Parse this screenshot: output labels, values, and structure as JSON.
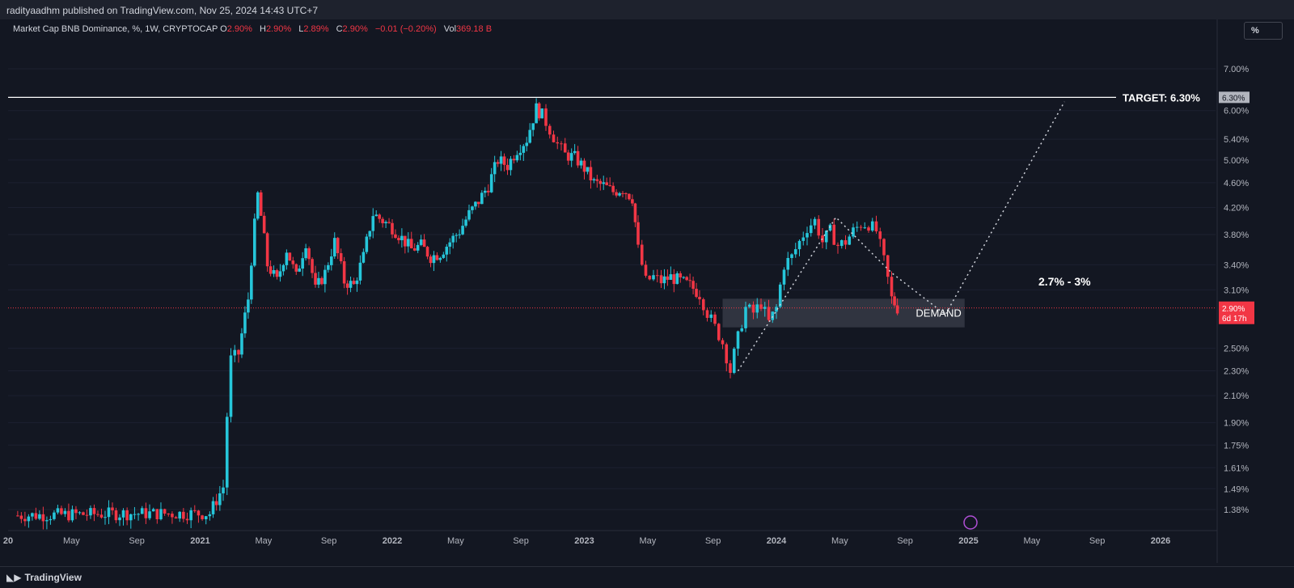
{
  "header": {
    "published": "radityaadhm published on TradingView.com, Nov 25, 2024 14:43 UTC+7"
  },
  "legend": {
    "symbol": "Market Cap BNB Dominance, %, 1W, CRYPTOCAP",
    "o_label": "O",
    "o_value": "2.90%",
    "h_label": "H",
    "h_value": "2.90%",
    "l_label": "L",
    "l_value": "2.89%",
    "c_label": "C",
    "c_value": "2.90%",
    "change": "−0.01 (−0.20%)",
    "vol_label": "Vol",
    "vol_value": "369.18 B"
  },
  "toolbar": {
    "scale_button": "%"
  },
  "footer": {
    "brand": "TradingView"
  },
  "colors": {
    "background": "#131722",
    "up": "#26c6da",
    "down": "#f23645",
    "text": "#d1d4dc",
    "grid": "#1c2030",
    "demand_box": "#363a45"
  },
  "chart_data": {
    "type": "candlestick",
    "scale": "log",
    "y_ticks": [
      "7.00%",
      "6.00%",
      "5.40%",
      "5.00%",
      "4.60%",
      "4.20%",
      "3.80%",
      "3.40%",
      "3.10%",
      "2.50%",
      "2.30%",
      "2.10%",
      "1.90%",
      "1.75%",
      "1.61%",
      "1.49%",
      "1.38%"
    ],
    "y_tick_values": [
      7.0,
      6.0,
      5.4,
      5.0,
      4.6,
      4.2,
      3.8,
      3.4,
      3.1,
      2.5,
      2.3,
      2.1,
      1.9,
      1.75,
      1.61,
      1.49,
      1.38
    ],
    "x_ticks": [
      "20",
      "May",
      "Sep",
      "2021",
      "May",
      "Sep",
      "2022",
      "May",
      "Sep",
      "2023",
      "May",
      "Sep",
      "2024",
      "May",
      "Sep",
      "2025",
      "May",
      "Sep",
      "2026"
    ],
    "x_tick_years": [
      2020.0,
      2020.33,
      2020.67,
      2021.0,
      2021.33,
      2021.67,
      2022.0,
      2022.33,
      2022.67,
      2023.0,
      2023.33,
      2023.67,
      2024.0,
      2024.33,
      2024.67,
      2025.0,
      2025.33,
      2025.67,
      2026.0
    ],
    "bold_x_ticks": [
      "20",
      "2021",
      "2022",
      "2023",
      "2024",
      "2025",
      "2026"
    ],
    "price_series": [
      [
        2020.05,
        1.35
      ],
      [
        2020.6,
        1.36
      ],
      [
        2021.05,
        1.36
      ],
      [
        2021.12,
        1.5
      ],
      [
        2021.16,
        2.4
      ],
      [
        2021.2,
        2.45
      ],
      [
        2021.25,
        3.0
      ],
      [
        2021.3,
        4.4
      ],
      [
        2021.35,
        3.4
      ],
      [
        2021.4,
        3.2
      ],
      [
        2021.45,
        3.6
      ],
      [
        2021.5,
        3.25
      ],
      [
        2021.55,
        3.7
      ],
      [
        2021.6,
        3.1
      ],
      [
        2021.65,
        3.3
      ],
      [
        2021.7,
        3.7
      ],
      [
        2021.75,
        3.2
      ],
      [
        2021.8,
        3.15
      ],
      [
        2021.85,
        3.5
      ],
      [
        2021.9,
        4.1
      ],
      [
        2021.95,
        4.0
      ],
      [
        2022.0,
        3.9
      ],
      [
        2022.05,
        3.75
      ],
      [
        2022.1,
        3.6
      ],
      [
        2022.15,
        3.65
      ],
      [
        2022.2,
        3.5
      ],
      [
        2022.25,
        3.55
      ],
      [
        2022.3,
        3.7
      ],
      [
        2022.35,
        3.85
      ],
      [
        2022.4,
        4.1
      ],
      [
        2022.45,
        4.3
      ],
      [
        2022.5,
        4.55
      ],
      [
        2022.55,
        5.0
      ],
      [
        2022.6,
        4.9
      ],
      [
        2022.65,
        5.2
      ],
      [
        2022.7,
        5.4
      ],
      [
        2022.75,
        6.05
      ],
      [
        2022.78,
        5.9
      ],
      [
        2022.82,
        5.6
      ],
      [
        2022.86,
        5.3
      ],
      [
        2022.9,
        5.1
      ],
      [
        2022.95,
        5.05
      ],
      [
        2023.0,
        4.85
      ],
      [
        2023.05,
        4.6
      ],
      [
        2023.1,
        4.55
      ],
      [
        2023.15,
        4.45
      ],
      [
        2023.2,
        4.5
      ],
      [
        2023.25,
        4.35
      ],
      [
        2023.28,
        3.6
      ],
      [
        2023.32,
        3.2
      ],
      [
        2023.36,
        3.25
      ],
      [
        2023.4,
        3.2
      ],
      [
        2023.45,
        3.25
      ],
      [
        2023.5,
        3.2
      ],
      [
        2023.55,
        3.15
      ],
      [
        2023.6,
        3.05
      ],
      [
        2023.64,
        2.85
      ],
      [
        2023.68,
        2.7
      ],
      [
        2023.72,
        2.55
      ],
      [
        2023.76,
        2.3
      ],
      [
        2023.8,
        2.6
      ],
      [
        2023.84,
        2.9
      ],
      [
        2023.88,
        2.85
      ],
      [
        2023.92,
        2.95
      ],
      [
        2023.96,
        2.75
      ],
      [
        2024.0,
        2.9
      ],
      [
        2024.04,
        3.4
      ],
      [
        2024.08,
        3.5
      ],
      [
        2024.12,
        3.7
      ],
      [
        2024.16,
        3.9
      ],
      [
        2024.2,
        4.0
      ],
      [
        2024.24,
        3.7
      ],
      [
        2024.28,
        3.85
      ],
      [
        2024.32,
        3.65
      ],
      [
        2024.36,
        3.7
      ],
      [
        2024.4,
        3.85
      ],
      [
        2024.44,
        3.95
      ],
      [
        2024.48,
        3.95
      ],
      [
        2024.52,
        3.85
      ],
      [
        2024.56,
        3.45
      ],
      [
        2024.6,
        3.0
      ],
      [
        2024.63,
        2.9
      ]
    ],
    "resistance_level": 6.3,
    "current_price": 2.9,
    "demand_zone": {
      "low": 2.7,
      "high": 3.0,
      "start": 2023.72,
      "end": 2024.98
    },
    "projection_path": [
      [
        2023.8,
        2.3
      ],
      [
        2024.31,
        4.05
      ],
      [
        2024.6,
        3.3
      ],
      [
        2024.88,
        2.83
      ],
      [
        2025.5,
        6.2
      ]
    ],
    "annotations": {
      "target": "TARGET: 6.30%",
      "target_axis": "6.30%",
      "range": "2.7% - 3%",
      "demand": "DEMAND",
      "price_tag": "2.90%",
      "countdown": "6d 17h"
    }
  }
}
